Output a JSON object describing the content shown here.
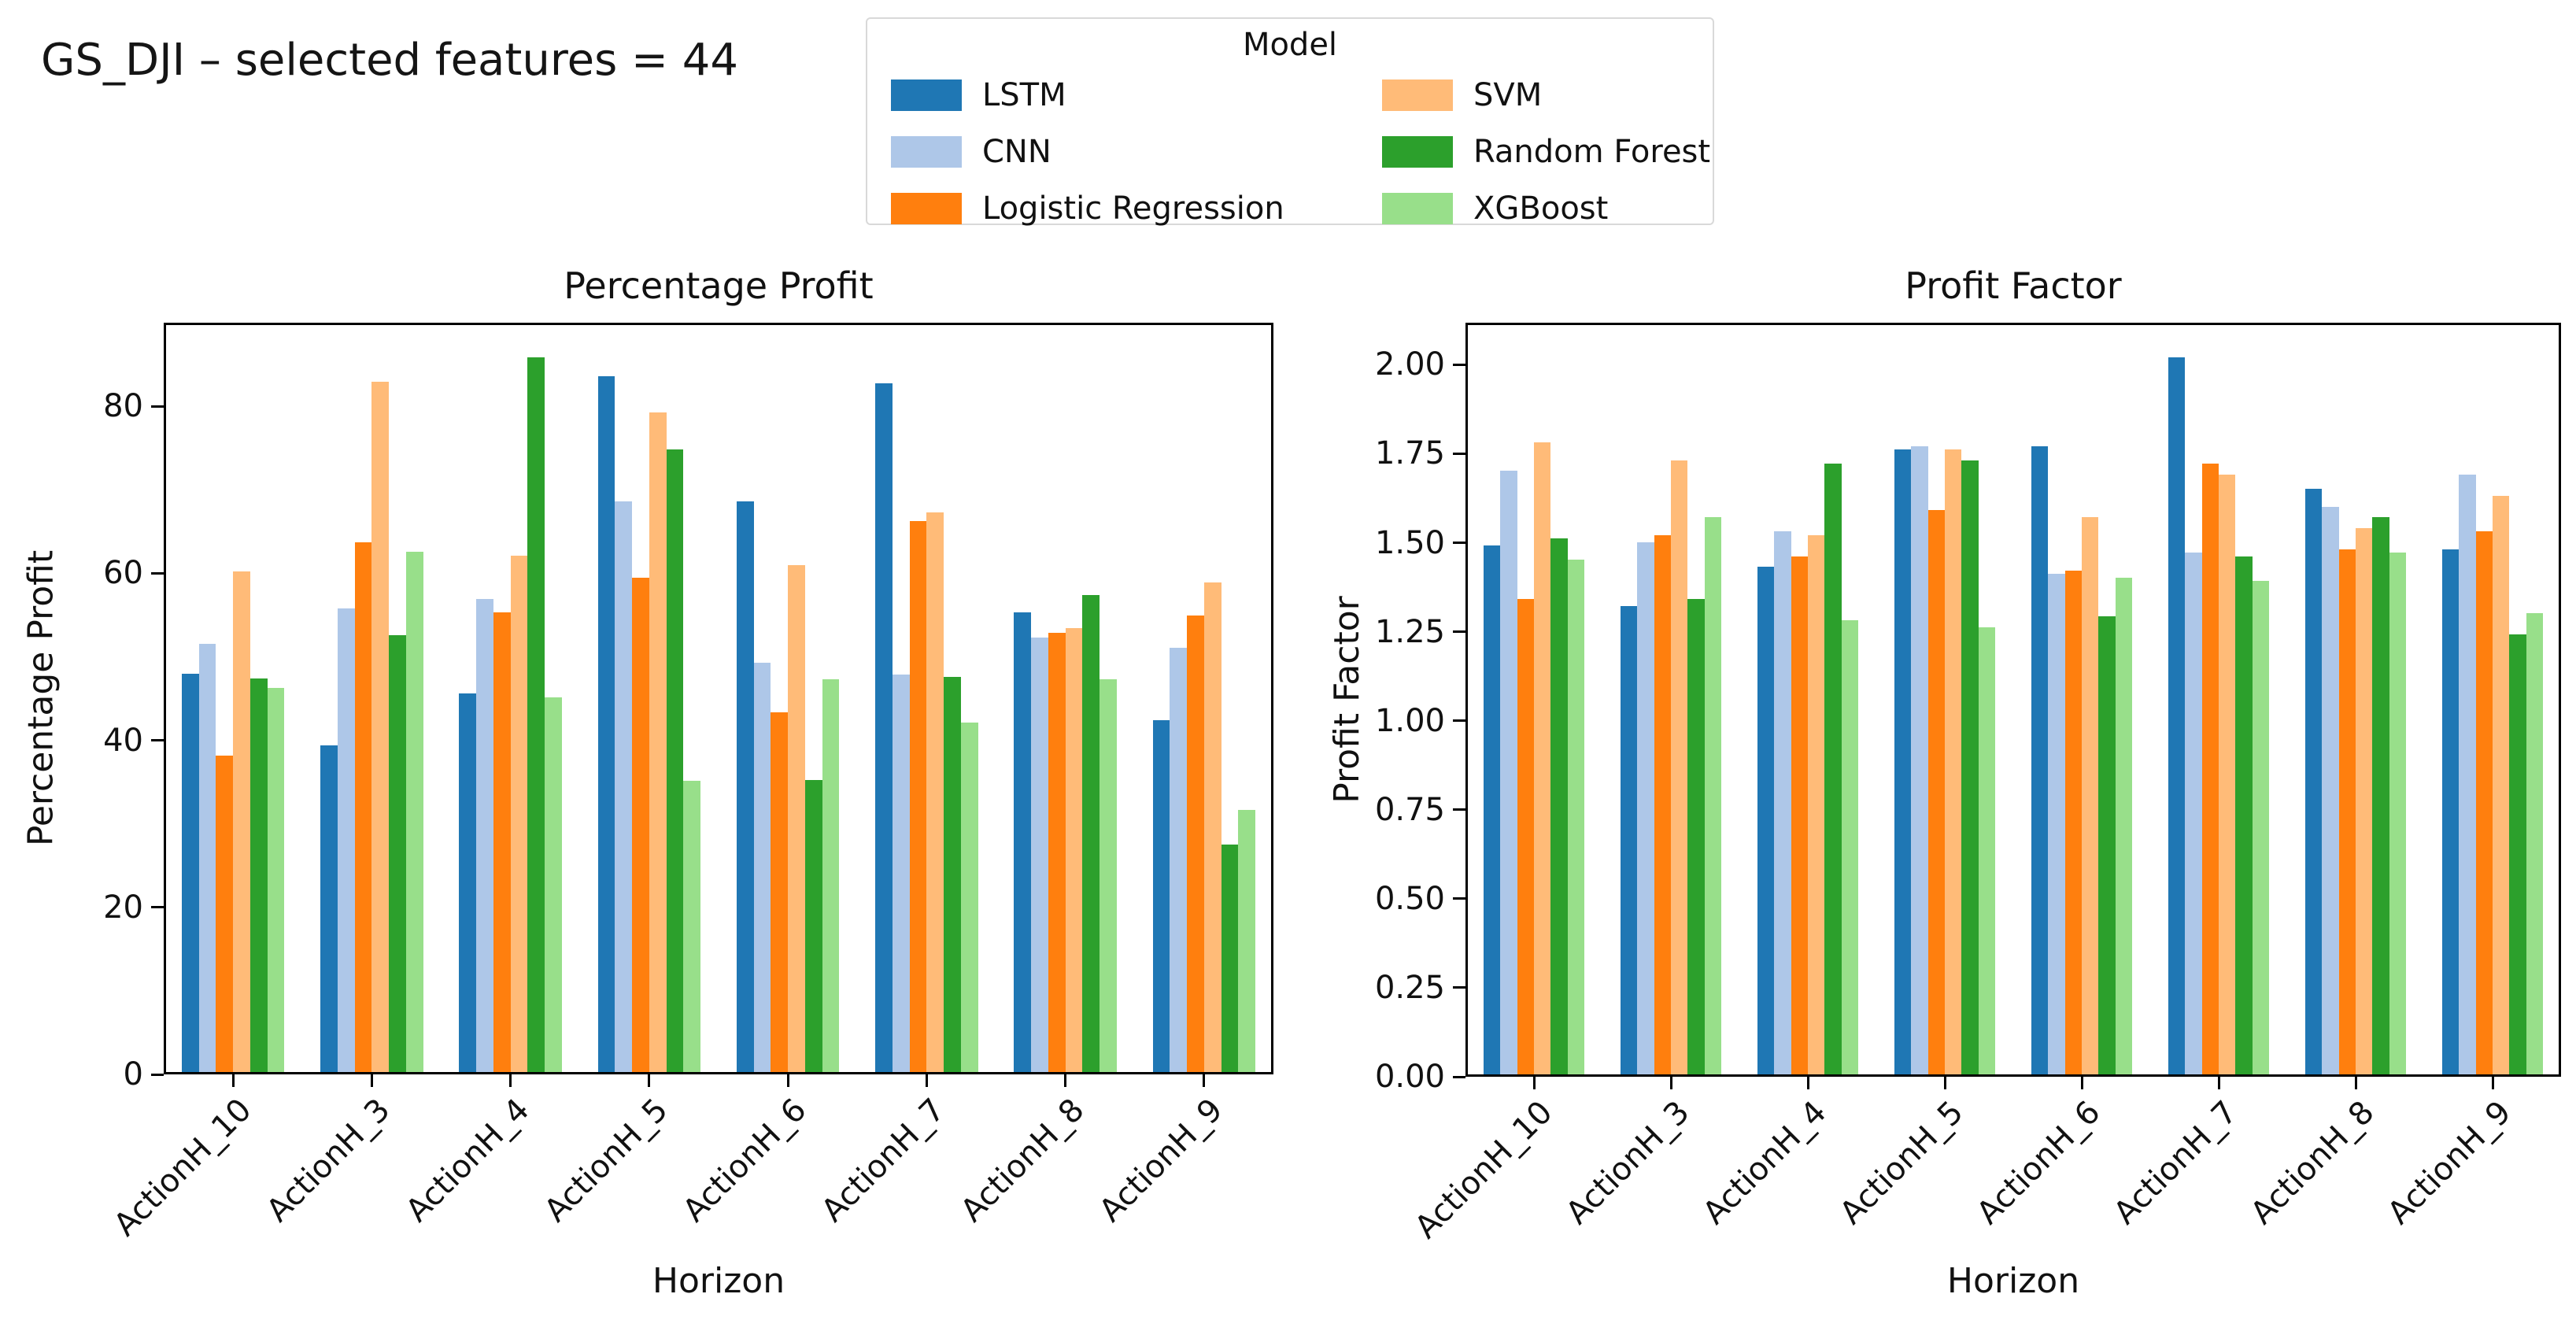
{
  "figure": {
    "title": "GS_DJI – selected features = 44"
  },
  "legend": {
    "title": "Model",
    "columns": [
      [
        {
          "label": "LSTM",
          "color": "#1f77b4"
        },
        {
          "label": "CNN",
          "color": "#aec7e8"
        },
        {
          "label": "Logistic Regression",
          "color": "#ff7f0e"
        }
      ],
      [
        {
          "label": "SVM",
          "color": "#ffbb78"
        },
        {
          "label": "Random Forest",
          "color": "#2ca02c"
        },
        {
          "label": "XGBoost",
          "color": "#98df8a"
        }
      ]
    ]
  },
  "chart_data": [
    {
      "type": "bar",
      "title": "Percentage Profit",
      "xlabel": "Horizon",
      "ylabel": "Percentage Profit",
      "ylim": [
        0,
        90
      ],
      "grid": false,
      "yticks": [
        {
          "v": 0,
          "label": "0"
        },
        {
          "v": 20,
          "label": "20"
        },
        {
          "v": 40,
          "label": "40"
        },
        {
          "v": 60,
          "label": "60"
        },
        {
          "v": 80,
          "label": "80"
        }
      ],
      "categories": [
        "ActionH_10",
        "ActionH_3",
        "ActionH_4",
        "ActionH_5",
        "ActionH_6",
        "ActionH_7",
        "ActionH_8",
        "ActionH_9"
      ],
      "series": [
        {
          "name": "LSTM",
          "color": "#1f77b4",
          "values": [
            47.8,
            39.2,
            45.5,
            83.6,
            68.5,
            82.7,
            55.2,
            42.3
          ]
        },
        {
          "name": "CNN",
          "color": "#aec7e8",
          "values": [
            51.4,
            55.7,
            56.8,
            68.5,
            49.2,
            47.7,
            52.2,
            51.0
          ]
        },
        {
          "name": "Logistic Regression",
          "color": "#ff7f0e",
          "values": [
            38.0,
            63.6,
            55.2,
            59.4,
            43.2,
            66.2,
            52.8,
            54.8
          ]
        },
        {
          "name": "SVM",
          "color": "#ffbb78",
          "values": [
            60.1,
            82.9,
            62.0,
            79.2,
            60.9,
            67.2,
            53.3,
            58.8
          ]
        },
        {
          "name": "Random Forest",
          "color": "#2ca02c",
          "values": [
            47.3,
            52.5,
            85.8,
            74.8,
            35.1,
            47.5,
            57.3,
            27.3
          ]
        },
        {
          "name": "XGBoost",
          "color": "#98df8a",
          "values": [
            46.1,
            62.5,
            45.0,
            35.0,
            47.2,
            42.0,
            47.2,
            31.5
          ]
        }
      ]
    },
    {
      "type": "bar",
      "title": "Profit Factor",
      "xlabel": "Horizon",
      "ylabel": "Profit Factor",
      "ylim": [
        0,
        2.118
      ],
      "grid": false,
      "yticks": [
        {
          "v": 0,
          "label": "0.00"
        },
        {
          "v": 0.25,
          "label": "0.25"
        },
        {
          "v": 0.5,
          "label": "0.50"
        },
        {
          "v": 0.75,
          "label": "0.75"
        },
        {
          "v": 1.0,
          "label": "1.00"
        },
        {
          "v": 1.25,
          "label": "1.25"
        },
        {
          "v": 1.5,
          "label": "1.50"
        },
        {
          "v": 1.75,
          "label": "1.75"
        },
        {
          "v": 2.0,
          "label": "2.00"
        }
      ],
      "categories": [
        "ActionH_10",
        "ActionH_3",
        "ActionH_4",
        "ActionH_5",
        "ActionH_6",
        "ActionH_7",
        "ActionH_8",
        "ActionH_9"
      ],
      "series": [
        {
          "name": "LSTM",
          "color": "#1f77b4",
          "values": [
            1.49,
            1.32,
            1.43,
            1.76,
            1.77,
            2.02,
            1.65,
            1.48
          ]
        },
        {
          "name": "CNN",
          "color": "#aec7e8",
          "values": [
            1.7,
            1.5,
            1.53,
            1.77,
            1.41,
            1.47,
            1.6,
            1.69
          ]
        },
        {
          "name": "Logistic Regression",
          "color": "#ff7f0e",
          "values": [
            1.34,
            1.52,
            1.46,
            1.59,
            1.42,
            1.72,
            1.48,
            1.53
          ]
        },
        {
          "name": "SVM",
          "color": "#ffbb78",
          "values": [
            1.78,
            1.73,
            1.52,
            1.76,
            1.57,
            1.69,
            1.54,
            1.63
          ]
        },
        {
          "name": "Random Forest",
          "color": "#2ca02c",
          "values": [
            1.51,
            1.34,
            1.72,
            1.73,
            1.29,
            1.46,
            1.57,
            1.24
          ]
        },
        {
          "name": "XGBoost",
          "color": "#98df8a",
          "values": [
            1.45,
            1.57,
            1.28,
            1.26,
            1.4,
            1.39,
            1.47,
            1.3
          ]
        }
      ]
    }
  ]
}
